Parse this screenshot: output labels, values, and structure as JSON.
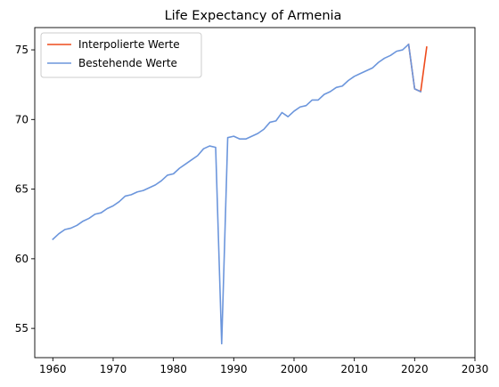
{
  "chart_data": {
    "type": "line",
    "title": "Life Expectancy of Armenia",
    "xlabel": "",
    "ylabel": "",
    "xlim": [
      1957,
      2030
    ],
    "ylim": [
      52.9,
      76.6
    ],
    "xticks": [
      1960,
      1970,
      1980,
      1990,
      2000,
      2010,
      2020,
      2030
    ],
    "yticks": [
      55,
      60,
      65,
      70,
      75
    ],
    "grid": false,
    "legend_position": "top-left",
    "series": [
      {
        "name": "Interpolierte Werte",
        "color": "#ee4b1c",
        "x": [
          2019,
          2020,
          2021,
          2022
        ],
        "y": [
          75.4,
          72.2,
          72.0,
          75.2
        ]
      },
      {
        "name": "Bestehende Werte",
        "color": "#6c96dc",
        "x": [
          1960,
          1961,
          1962,
          1963,
          1964,
          1965,
          1966,
          1967,
          1968,
          1969,
          1970,
          1971,
          1972,
          1973,
          1974,
          1975,
          1976,
          1977,
          1978,
          1979,
          1980,
          1981,
          1982,
          1983,
          1984,
          1985,
          1986,
          1987,
          1988,
          1989,
          1990,
          1991,
          1992,
          1993,
          1994,
          1995,
          1996,
          1997,
          1998,
          1999,
          2000,
          2001,
          2002,
          2003,
          2004,
          2005,
          2006,
          2007,
          2008,
          2009,
          2010,
          2011,
          2012,
          2013,
          2014,
          2015,
          2016,
          2017,
          2018,
          2019,
          2020,
          2021
        ],
        "y": [
          61.4,
          61.8,
          62.1,
          62.2,
          62.4,
          62.7,
          62.9,
          63.2,
          63.3,
          63.6,
          63.8,
          64.1,
          64.5,
          64.6,
          64.8,
          64.9,
          65.1,
          65.3,
          65.6,
          66.0,
          66.1,
          66.5,
          66.8,
          67.1,
          67.4,
          67.9,
          68.1,
          68.0,
          53.9,
          68.7,
          68.8,
          68.6,
          68.6,
          68.8,
          69.0,
          69.3,
          69.8,
          69.9,
          70.5,
          70.2,
          70.6,
          70.9,
          71.0,
          71.4,
          71.4,
          71.8,
          72.0,
          72.3,
          72.4,
          72.8,
          73.1,
          73.3,
          73.5,
          73.7,
          74.1,
          74.4,
          74.6,
          74.9,
          75.0,
          75.4,
          72.2,
          72.0
        ]
      }
    ]
  }
}
